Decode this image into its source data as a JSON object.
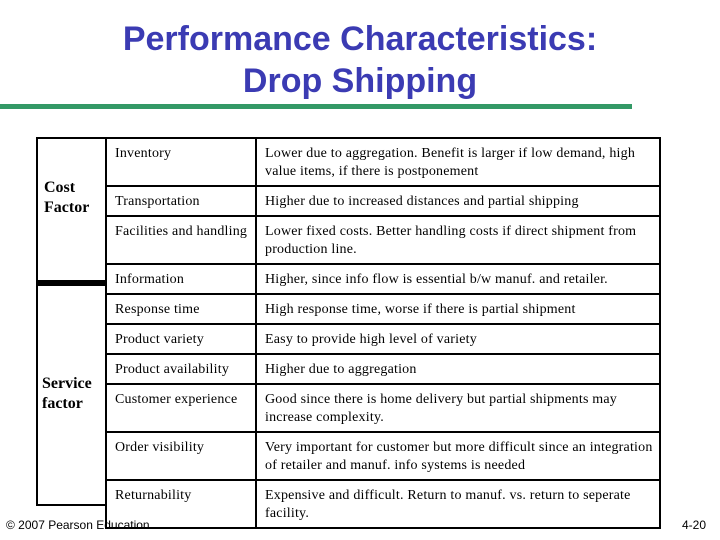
{
  "slide": {
    "title_line1": "Performance Characteristics:",
    "title_line2": "Drop Shipping"
  },
  "groups": {
    "cost": "Cost Factor",
    "service": "Service factor"
  },
  "rows": [
    {
      "item": "Inventory",
      "description": "Lower due to aggregation. Benefit is larger if low demand, high value items, if there is postponement"
    },
    {
      "item": "Transportation",
      "description": "Higher due to increased distances and partial shipping"
    },
    {
      "item": "Facilities and handling",
      "description": "Lower fixed costs. Better handling costs if direct shipment from production line."
    },
    {
      "item": "Information",
      "description": "Higher, since info flow is essential b/w manuf. and retailer."
    },
    {
      "item": "Response time",
      "description": "High response time, worse if there is partial shipment"
    },
    {
      "item": "Product variety",
      "description": "Easy to provide high level of variety"
    },
    {
      "item": "Product availability",
      "description": "Higher due to aggregation"
    },
    {
      "item": "Customer experience",
      "description": "Good since there is home delivery but partial shipments may increase complexity."
    },
    {
      "item": "Order visibility",
      "description": "Very important for customer but more difficult since an integration of retailer and manuf. info systems is needed"
    },
    {
      "item": "Returnability",
      "description": "Expensive and difficult. Return to manuf. vs. return to seperate facility."
    }
  ],
  "footer": {
    "copyright": "© 2007 Pearson Education",
    "page": "4-20"
  },
  "colors": {
    "title": "#3b3bb3",
    "rule": "#339966"
  }
}
